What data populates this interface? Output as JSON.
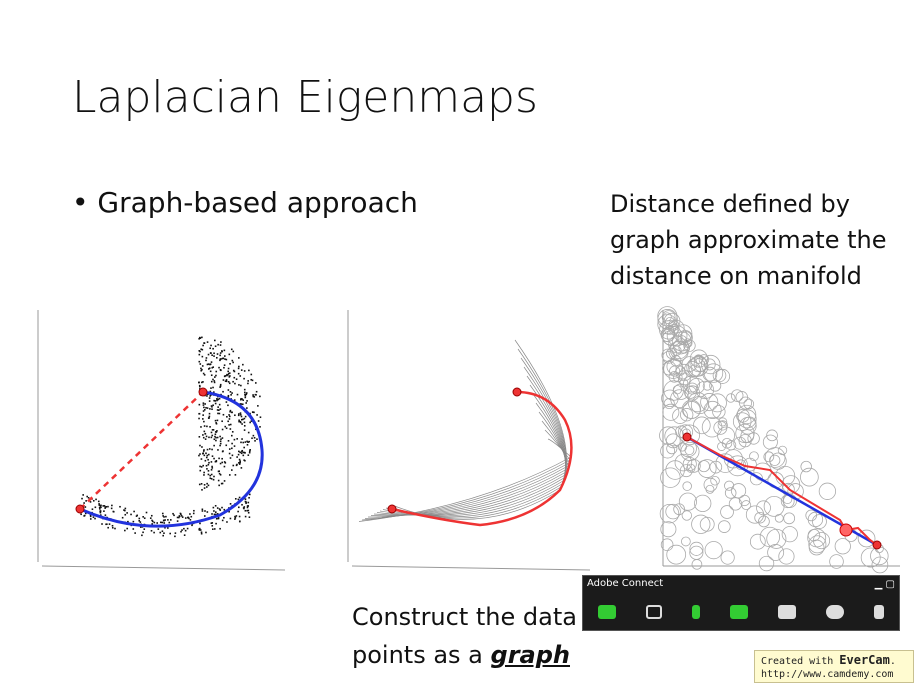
{
  "slide": {
    "title": "Laplacian Eigenmaps",
    "bullet": "Graph-based approach",
    "note_right": [
      "Distance defined by",
      "graph approximate the",
      "distance on manifold"
    ],
    "caption": {
      "lines": [
        "Construct the data",
        "points as a "
      ],
      "emphasis": "graph"
    }
  },
  "toolbar": {
    "title": "Adobe Connect"
  },
  "watermark": {
    "prefix": "Created with ",
    "brand": "EverCam",
    "suffix": ".",
    "url": "http://www.camdemy.com"
  }
}
